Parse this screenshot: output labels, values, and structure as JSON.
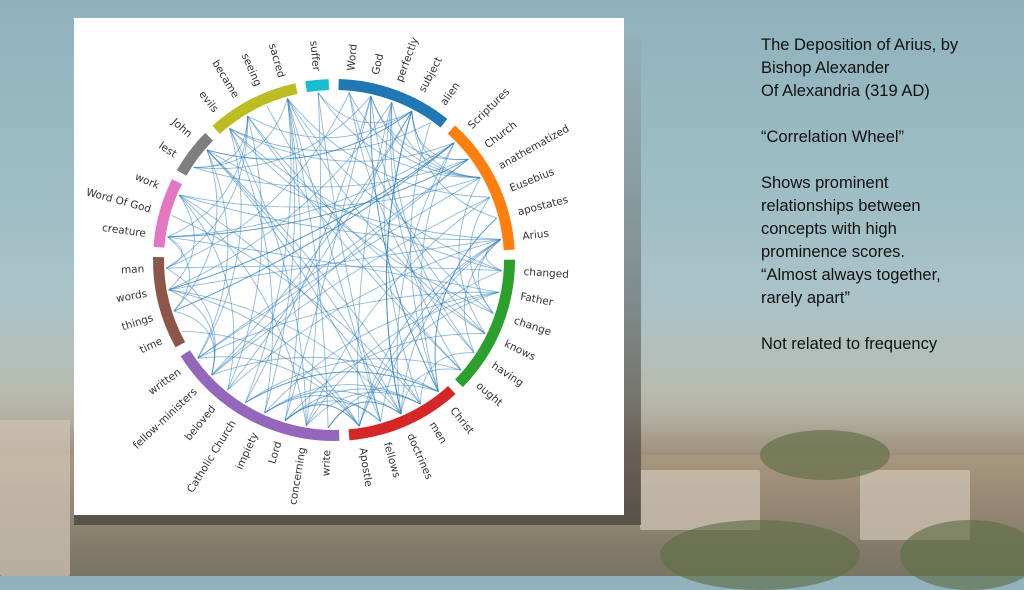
{
  "notes": {
    "title_line1": "The Deposition of Arius, by",
    "title_line2": "Bishop Alexander",
    "title_line3": "Of Alexandria (319 AD)",
    "subtitle": "“Correlation Wheel”",
    "desc_line1": "Shows prominent",
    "desc_line2": "relationships between",
    "desc_line3": "concepts with high",
    "desc_line4": "prominence scores.",
    "desc_line5": "“Almost always together,",
    "desc_line6": "rarely apart”",
    "footer": "Not related to frequency"
  },
  "wheel": {
    "chord_color": "#2f7fbd",
    "groups": [
      {
        "color": "#1f77b4",
        "words": [
          "Word",
          "God",
          "perfectly",
          "subject",
          "alien"
        ]
      },
      {
        "color": "#ff7f0e",
        "words": [
          "Scriptures",
          "Church",
          "anathematized",
          "Eusebius",
          "apostates",
          "Arius"
        ]
      },
      {
        "color": "#2ca02c",
        "words": [
          "changed",
          "Father",
          "change",
          "knows",
          "having",
          "ought"
        ]
      },
      {
        "color": "#d62728",
        "words": [
          "Christ",
          "men",
          "doctrines",
          "fellows",
          "Apostle"
        ]
      },
      {
        "color": "#9467bd",
        "words": [
          "write",
          "concerning",
          "Lord",
          "impiety",
          "Catholic Church",
          "beloved",
          "fellow-ministers",
          "written"
        ]
      },
      {
        "color": "#8c564b",
        "words": [
          "time",
          "things",
          "words",
          "man"
        ]
      },
      {
        "color": "#e377c2",
        "words": [
          "creature",
          "Word Of God",
          "work"
        ]
      },
      {
        "color": "#7f7f7f",
        "words": [
          "lest",
          "John"
        ]
      },
      {
        "color": "#bcbd22",
        "words": [
          "evils",
          "became",
          "seeing",
          "sacred"
        ]
      },
      {
        "color": "#17becf",
        "words": [
          "suffer"
        ]
      }
    ]
  }
}
